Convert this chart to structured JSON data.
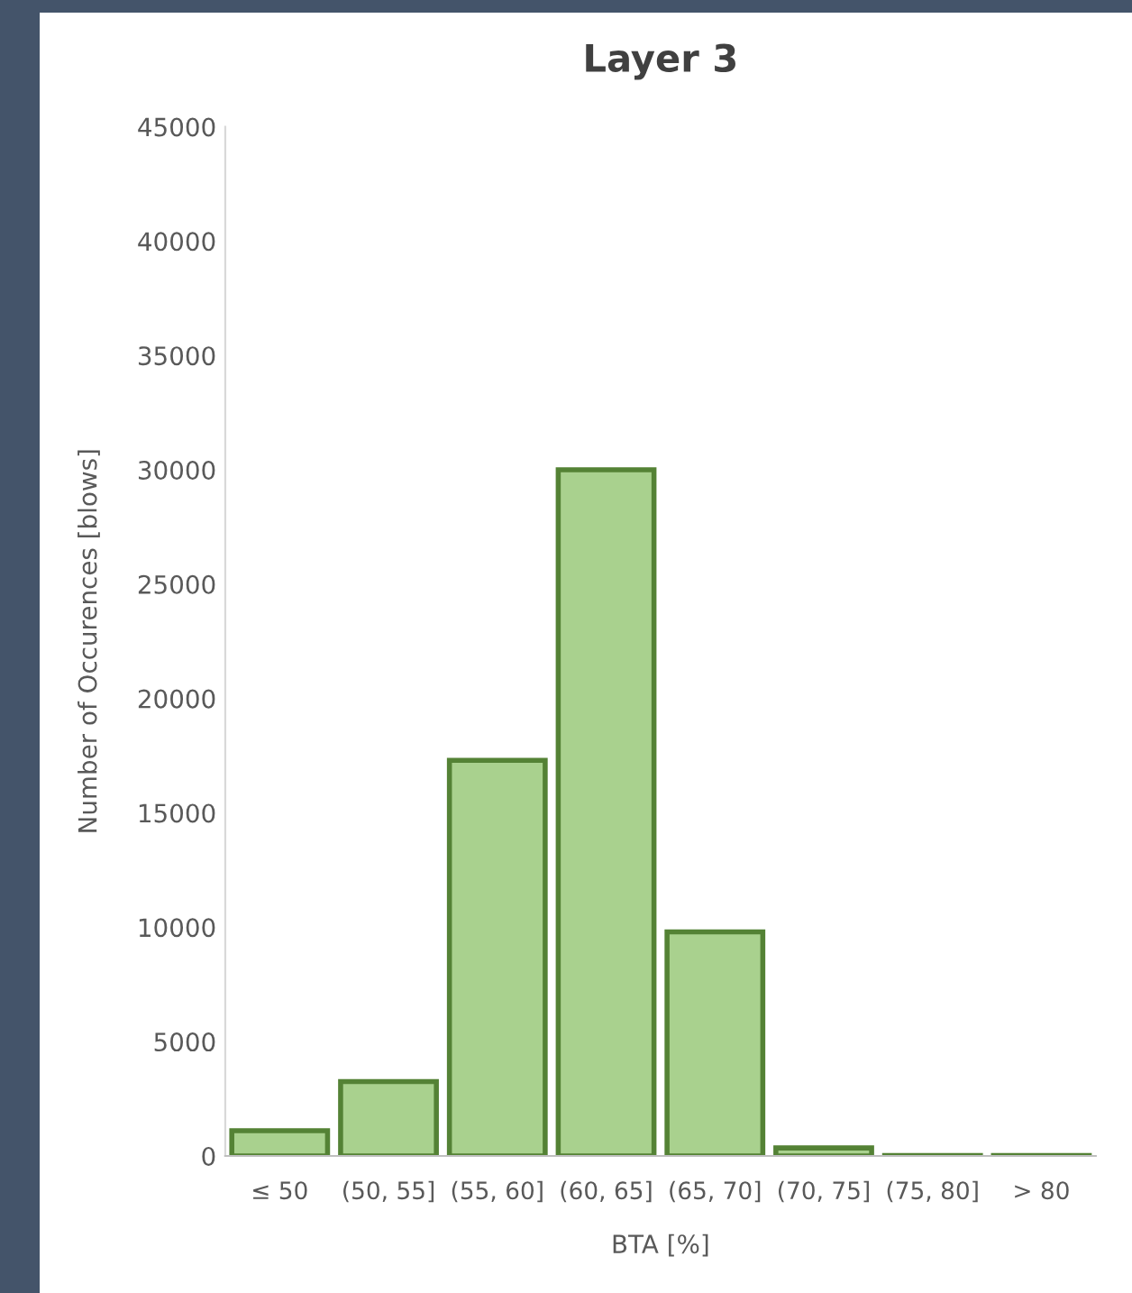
{
  "chart_data": {
    "type": "bar",
    "title": "Layer 3",
    "xlabel": "BTA [%]",
    "ylabel": "Number of Occurences [blows]",
    "categories": [
      "≤ 50",
      "(50, 55]",
      "(55, 60]",
      "(60, 65]",
      "(65, 70]",
      "(70, 75]",
      "(75, 80]",
      "> 80"
    ],
    "values": [
      1100,
      3250,
      17300,
      30000,
      9800,
      350,
      20,
      20
    ],
    "color": "#a9d18e",
    "ylim": [
      0,
      45000
    ],
    "yticks": [
      0,
      5000,
      10000,
      15000,
      20000,
      25000,
      30000,
      35000,
      40000,
      45000
    ],
    "grid": false
  }
}
